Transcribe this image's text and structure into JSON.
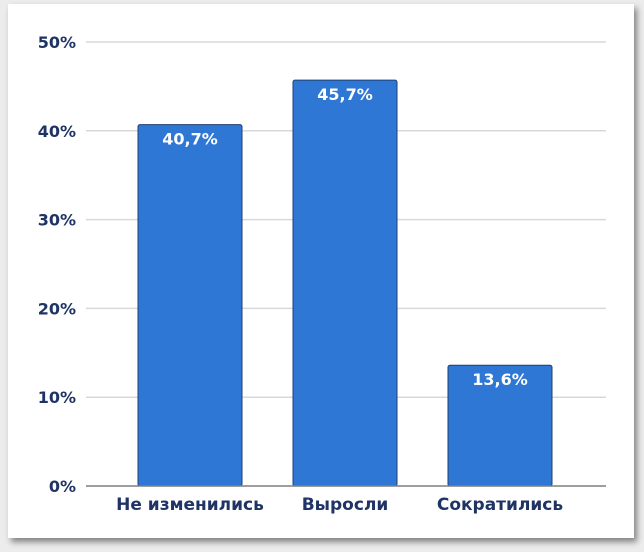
{
  "chart_data": {
    "type": "bar",
    "categories": [
      "Не изменились",
      "Выросли",
      "Сократились"
    ],
    "values": [
      40.7,
      45.7,
      13.6
    ],
    "data_labels": [
      "40,7%",
      "45,7%",
      "13,6%"
    ],
    "yticks": [
      0,
      10,
      20,
      30,
      40,
      50
    ],
    "ytick_labels": [
      "0%",
      "10%",
      "20%",
      "30%",
      "40%",
      "50%"
    ],
    "ylim": [
      0,
      50
    ],
    "grid": true,
    "colors": {
      "bar": "#2f77d4",
      "bar_edge": "#1f3f73",
      "text": "#1f3464",
      "grid": "#d9d9d9",
      "axis": "#7f7f7f"
    }
  }
}
